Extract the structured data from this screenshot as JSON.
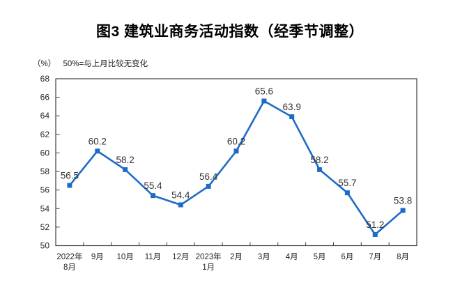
{
  "figure": {
    "title": "图3  建筑业商务活动指数（经季节调整）",
    "y_unit_label": "（%）",
    "baseline_note": "50%=与上月比较无变化"
  },
  "chart_data": {
    "type": "line",
    "title": "图3  建筑业商务活动指数（经季节调整）",
    "ylabel": "（%）",
    "annotation": "50%=与上月比较无变化",
    "categories": [
      "2022年8月",
      "9月",
      "10月",
      "11月",
      "12月",
      "2023年1月",
      "2月",
      "3月",
      "4月",
      "5月",
      "6月",
      "7月",
      "8月"
    ],
    "category_lines": [
      [
        "2022年",
        "8月"
      ],
      [
        "9月"
      ],
      [
        "10月"
      ],
      [
        "11月"
      ],
      [
        "12月"
      ],
      [
        "2023年",
        "1月"
      ],
      [
        "2月"
      ],
      [
        "3月"
      ],
      [
        "4月"
      ],
      [
        "5月"
      ],
      [
        "6月"
      ],
      [
        "7月"
      ],
      [
        "8月"
      ]
    ],
    "values": [
      56.5,
      60.2,
      58.2,
      55.4,
      54.4,
      56.4,
      60.2,
      65.6,
      63.9,
      58.2,
      55.7,
      51.2,
      53.8
    ],
    "ylim": [
      50,
      68
    ],
    "ytick_step": 2,
    "grid": false,
    "legend_position": "none",
    "data_labels": true,
    "marker": "square",
    "line_color": "#1E6BC7",
    "axis_color": "#3F3F3F",
    "tick_label_color": "#262626",
    "data_label_color": "#333333"
  }
}
